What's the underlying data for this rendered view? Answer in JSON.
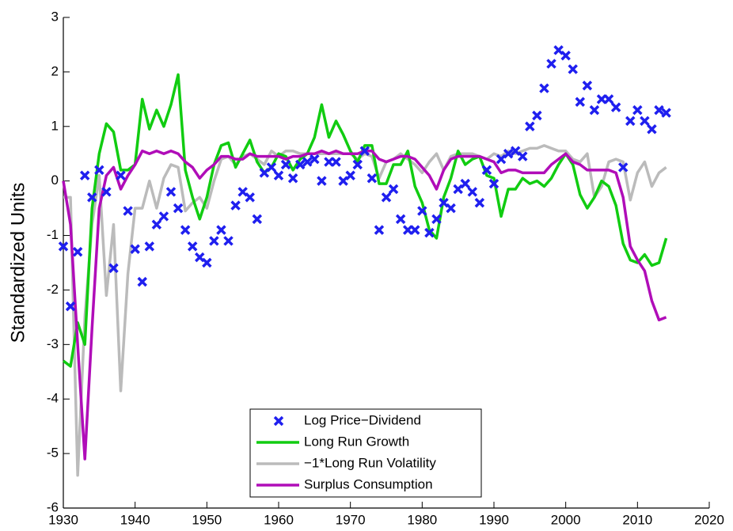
{
  "chart_data": {
    "type": "line",
    "y_label": "Standardized Units",
    "x": [
      1930,
      1931,
      1932,
      1933,
      1934,
      1935,
      1936,
      1937,
      1938,
      1939,
      1940,
      1941,
      1942,
      1943,
      1944,
      1945,
      1946,
      1947,
      1948,
      1949,
      1950,
      1951,
      1952,
      1953,
      1954,
      1955,
      1956,
      1957,
      1958,
      1959,
      1960,
      1961,
      1962,
      1963,
      1964,
      1965,
      1966,
      1967,
      1968,
      1969,
      1970,
      1971,
      1972,
      1973,
      1974,
      1975,
      1976,
      1977,
      1978,
      1979,
      1980,
      1981,
      1982,
      1983,
      1984,
      1985,
      1986,
      1987,
      1988,
      1989,
      1990,
      1991,
      1992,
      1993,
      1994,
      1995,
      1996,
      1997,
      1998,
      1999,
      2000,
      2001,
      2002,
      2003,
      2004,
      2005,
      2006,
      2007,
      2008,
      2009,
      2010,
      2011,
      2012,
      2013,
      2014
    ],
    "series": [
      {
        "name": "Log Price−Dividend",
        "color": "#1f1fef",
        "marker": "x",
        "values": [
          -1.2,
          -2.3,
          -1.3,
          0.1,
          -0.3,
          0.2,
          -0.2,
          -1.6,
          0.1,
          -0.55,
          -1.25,
          -1.85,
          -1.2,
          -0.8,
          -0.65,
          -0.2,
          -0.5,
          -0.9,
          -1.2,
          -1.4,
          -1.5,
          -1.1,
          -0.9,
          -1.1,
          -0.45,
          -0.2,
          -0.3,
          -0.7,
          0.15,
          0.25,
          0.1,
          0.3,
          0.05,
          0.3,
          0.35,
          0.4,
          0,
          0.35,
          0.35,
          0,
          0.1,
          0.3,
          0.55,
          0.05,
          -0.9,
          -0.3,
          -0.15,
          -0.7,
          -0.9,
          -0.9,
          -0.55,
          -0.95,
          -0.7,
          -0.4,
          -0.5,
          -0.15,
          -0.05,
          -0.2,
          -0.4,
          0.2,
          -0.05,
          0.4,
          0.5,
          0.55,
          0.45,
          1.0,
          1.2,
          1.7,
          2.15,
          2.4,
          2.3,
          2.05,
          1.45,
          1.75,
          1.3,
          1.5,
          1.5,
          1.35,
          0.25,
          1.1,
          1.3,
          1.1,
          0.95,
          1.3,
          1.25
        ]
      },
      {
        "name": "Long Run Growth",
        "color": "#11cc11",
        "marker": "line",
        "values": [
          -3.3,
          -3.4,
          -2.6,
          -3.0,
          -0.5,
          0.5,
          1.05,
          0.9,
          0.2,
          0.2,
          0.3,
          1.5,
          0.95,
          1.3,
          1.0,
          1.4,
          1.95,
          0.2,
          -0.3,
          -0.7,
          -0.3,
          0.3,
          0.65,
          0.7,
          0.25,
          0.5,
          0.75,
          0.35,
          0.15,
          0.25,
          0.5,
          0.45,
          0.2,
          0.4,
          0.5,
          0.8,
          1.4,
          0.8,
          1.1,
          0.85,
          0.55,
          0.35,
          0.65,
          0.65,
          -0.05,
          -0.05,
          0.3,
          0.3,
          0.55,
          -0.1,
          -0.4,
          -0.9,
          -1.05,
          -0.3,
          0.05,
          0.55,
          0.3,
          0.4,
          0.45,
          0.1,
          0.05,
          -0.65,
          -0.15,
          -0.15,
          0.05,
          -0.05,
          0,
          -0.1,
          0.05,
          0.3,
          0.5,
          0.3,
          -0.25,
          -0.5,
          -0.3,
          0.0,
          -0.1,
          -0.45,
          -1.15,
          -1.45,
          -1.5,
          -1.35,
          -1.55,
          -1.5,
          -1.05
        ]
      },
      {
        "name": "−1*Long Run Volatility",
        "color": "#bbbbbb",
        "marker": "line",
        "values": [
          -0.3,
          -0.3,
          -5.4,
          -2.5,
          -0.8,
          0.1,
          -2.1,
          -0.8,
          -3.85,
          -1.7,
          -0.5,
          -0.5,
          0.0,
          -0.5,
          0.05,
          0.3,
          0.25,
          -0.55,
          -0.4,
          -0.3,
          -0.5,
          0.0,
          0.4,
          0.45,
          0.3,
          0.45,
          0.5,
          0.4,
          0.3,
          0.55,
          0.45,
          0.55,
          0.55,
          0.5,
          0.5,
          0.5,
          0.5,
          0.5,
          0.5,
          0.5,
          0.5,
          0.4,
          0.5,
          0.45,
          0.05,
          0.35,
          0.4,
          0.5,
          0.4,
          0.3,
          0.15,
          0.35,
          0.5,
          0.2,
          0.45,
          0.5,
          0.5,
          0.5,
          0.45,
          0.4,
          0.5,
          0.45,
          0.55,
          0.5,
          0.55,
          0.6,
          0.6,
          0.65,
          0.6,
          0.55,
          0.55,
          0.4,
          0.35,
          0.5,
          -0.3,
          -0.1,
          0.35,
          0.4,
          0.35,
          -0.35,
          0.15,
          0.35,
          -0.1,
          0.15,
          0.25
        ]
      },
      {
        "name": "Surplus Consumption",
        "color": "#b00db8",
        "marker": "line",
        "values": [
          0.0,
          -0.8,
          -3.0,
          -5.1,
          -2.7,
          -0.5,
          0.1,
          0.25,
          -0.15,
          0.1,
          0.3,
          0.55,
          0.5,
          0.55,
          0.5,
          0.55,
          0.5,
          0.35,
          0.25,
          0.05,
          0.2,
          0.3,
          0.45,
          0.45,
          0.4,
          0.4,
          0.5,
          0.45,
          0.45,
          0.45,
          0.45,
          0.4,
          0.45,
          0.45,
          0.5,
          0.5,
          0.55,
          0.5,
          0.55,
          0.5,
          0.5,
          0.5,
          0.55,
          0.55,
          0.4,
          0.35,
          0.4,
          0.45,
          0.45,
          0.4,
          0.25,
          0.1,
          -0.15,
          0.2,
          0.4,
          0.45,
          0.45,
          0.45,
          0.45,
          0.4,
          0.35,
          0.15,
          0.2,
          0.2,
          0.15,
          0.15,
          0.15,
          0.15,
          0.3,
          0.4,
          0.5,
          0.35,
          0.3,
          0.2,
          0.2,
          0.2,
          0.2,
          0.15,
          -0.3,
          -1.2,
          -1.45,
          -1.65,
          -2.2,
          -2.55,
          -2.5
        ]
      }
    ],
    "xlim": [
      1930,
      2020
    ],
    "xticks": [
      1930,
      1940,
      1950,
      1960,
      1970,
      1980,
      1990,
      2000,
      2010,
      2020
    ],
    "ylim": [
      -6,
      3
    ],
    "yticks": [
      -6,
      -5,
      -4,
      -3,
      -2,
      -1,
      0,
      1,
      2,
      3
    ],
    "legend": "bottom-center"
  }
}
